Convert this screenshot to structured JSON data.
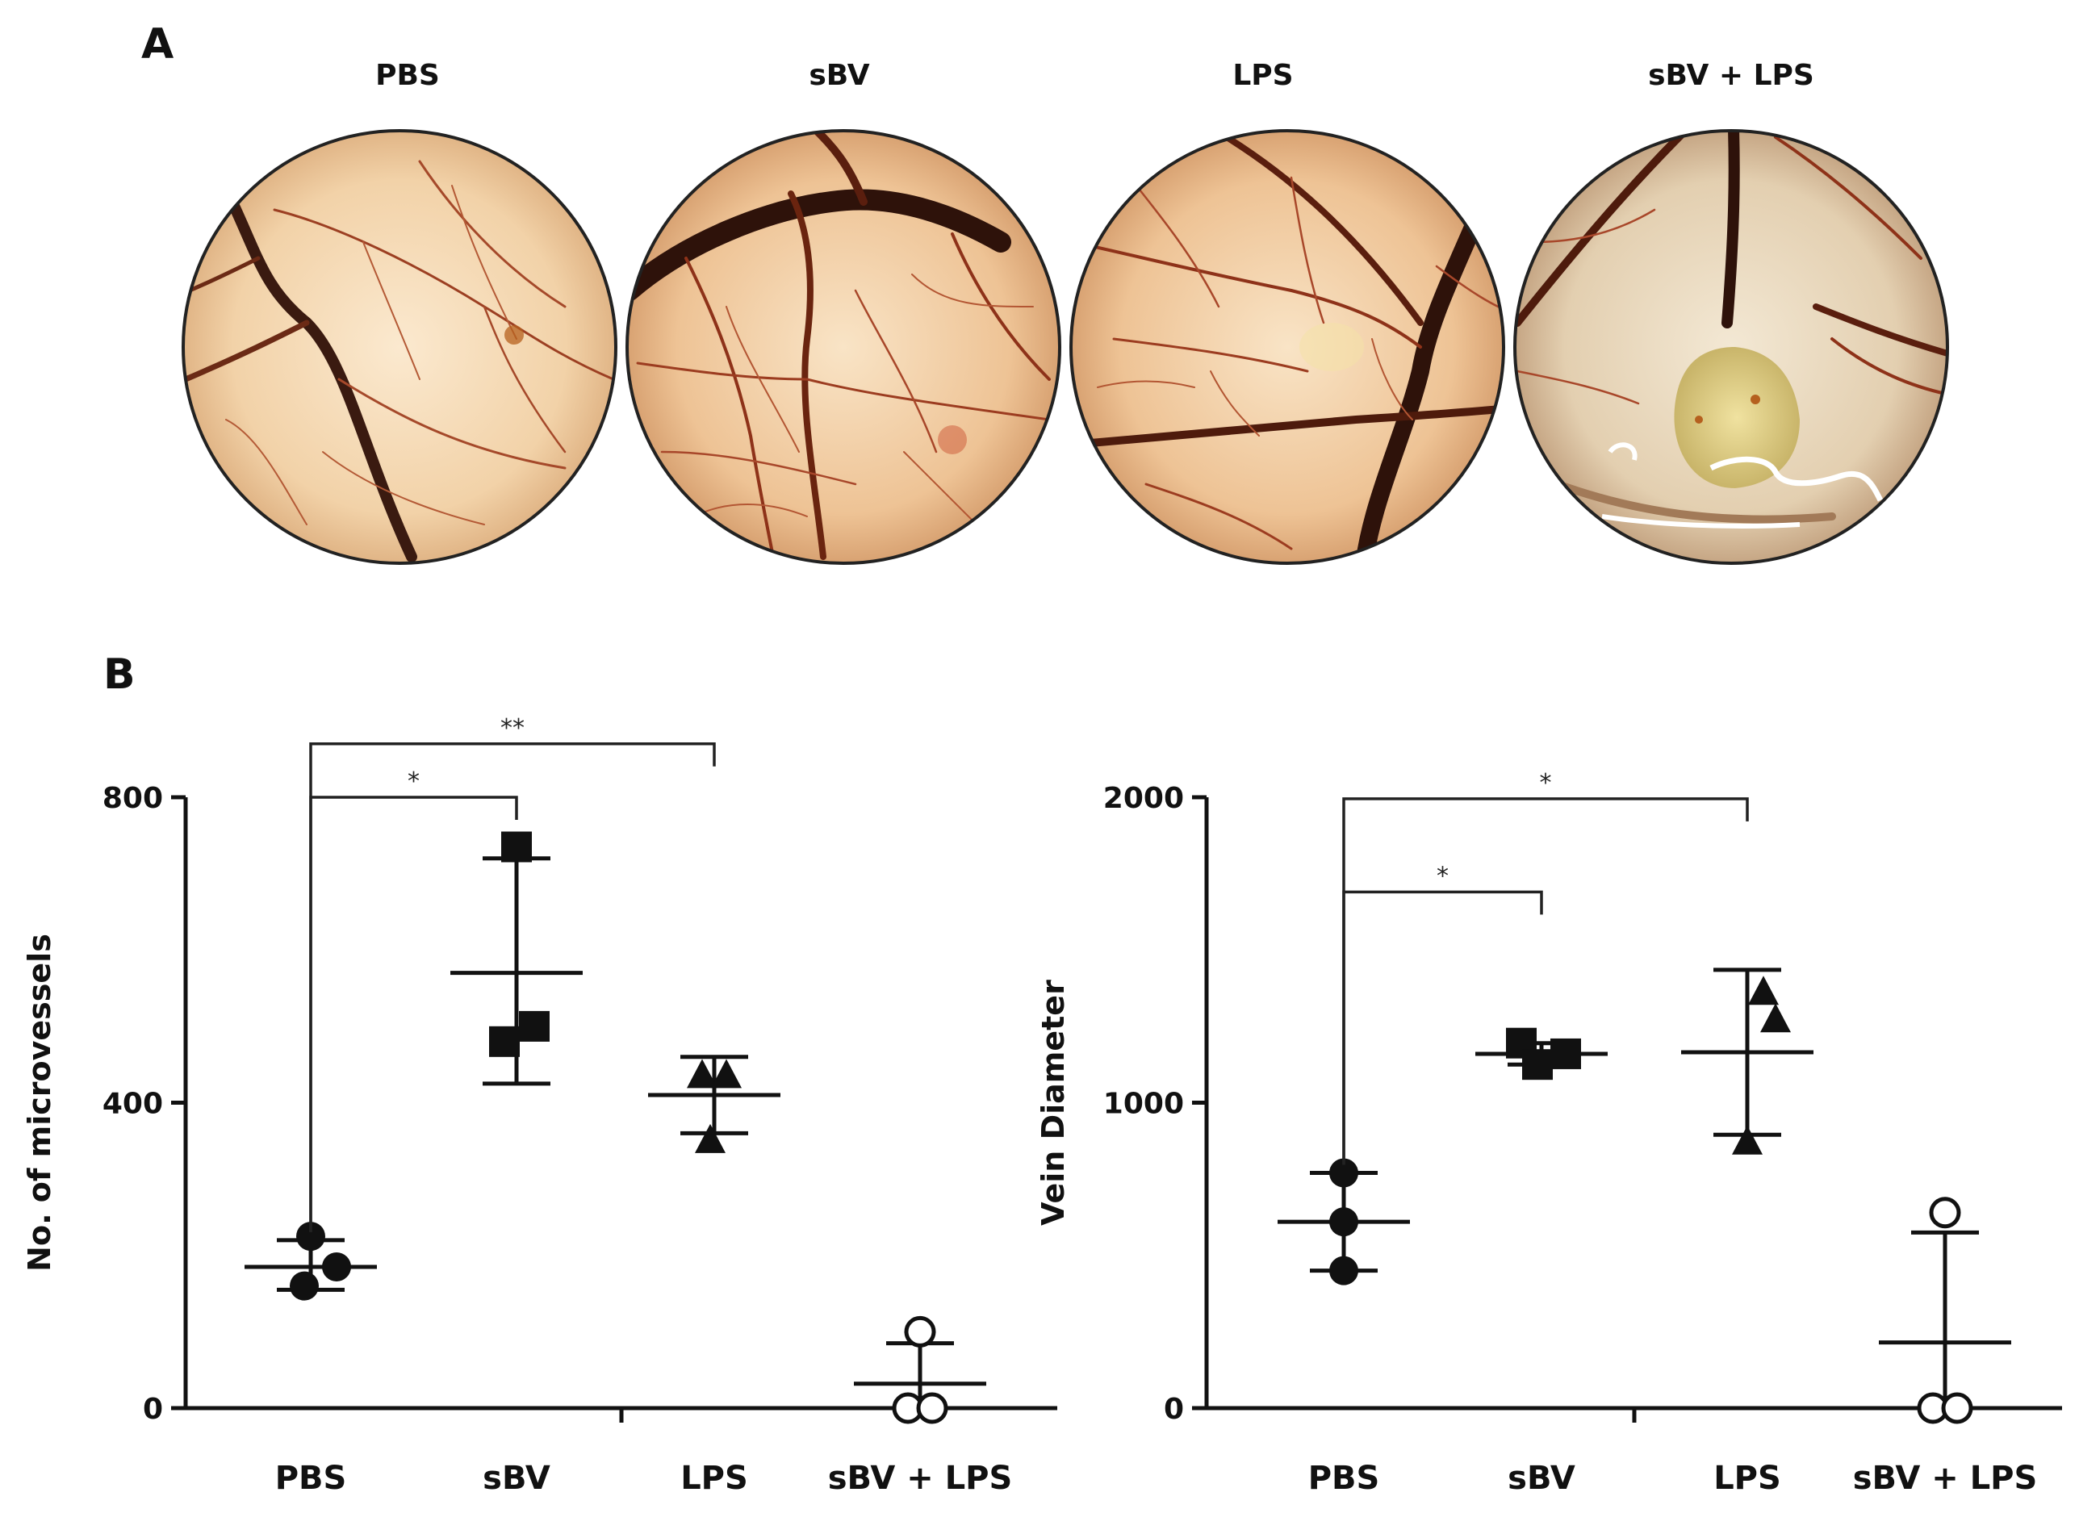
{
  "panel_labels": {
    "a": "A",
    "b": "B"
  },
  "photos": [
    {
      "title": "PBS",
      "pattern": "normal"
    },
    {
      "title": "sBV",
      "pattern": "dense"
    },
    {
      "title": "LPS",
      "pattern": "dense"
    },
    {
      "title": "sBV + LPS",
      "pattern": "avascular"
    }
  ],
  "chart_data": [
    {
      "type": "scatter",
      "ylabel": "No. of microvessels",
      "xlabel": "",
      "categories": [
        "PBS",
        "sBV",
        "LPS",
        "sBV + LPS"
      ],
      "ylim": [
        0,
        800
      ],
      "yticks": [
        0,
        400,
        800
      ],
      "groups": [
        {
          "category": "PBS",
          "marker": "circle-filled",
          "points": [
            225,
            185,
            160
          ],
          "mean": 185,
          "err": [
            155,
            220
          ]
        },
        {
          "category": "sBV",
          "marker": "square-filled",
          "points": [
            735,
            500,
            480
          ],
          "mean": 570,
          "err": [
            425,
            720
          ]
        },
        {
          "category": "LPS",
          "marker": "triangle-filled",
          "points": [
            435,
            435,
            350
          ],
          "mean": 410,
          "err": [
            360,
            460
          ]
        },
        {
          "category": "sBV + LPS",
          "marker": "circle-open",
          "points": [
            100,
            0,
            0
          ],
          "mean": 32,
          "err": [
            0,
            85
          ]
        }
      ],
      "comparisons": [
        {
          "from": "PBS",
          "to": "sBV",
          "label": "*",
          "level": 800
        },
        {
          "from": "PBS",
          "to": "LPS",
          "label": "**",
          "level": 870
        }
      ]
    },
    {
      "type": "scatter",
      "ylabel": "Vein Diameter",
      "xlabel": "",
      "categories": [
        "PBS",
        "sBV",
        "LPS",
        "sBV + LPS"
      ],
      "ylim": [
        0,
        2000
      ],
      "yticks": [
        0,
        1000,
        2000
      ],
      "groups": [
        {
          "category": "PBS",
          "marker": "circle-filled",
          "points": [
            770,
            610,
            450
          ],
          "mean": 610,
          "err": [
            450,
            770
          ]
        },
        {
          "category": "sBV",
          "marker": "square-filled",
          "points": [
            1195,
            1125,
            1160
          ],
          "mean": 1160,
          "err": [
            1125,
            1195
          ]
        },
        {
          "category": "LPS",
          "marker": "triangle-filled",
          "points": [
            1360,
            1270,
            870
          ],
          "mean": 1165,
          "err": [
            895,
            1435
          ]
        },
        {
          "category": "sBV + LPS",
          "marker": "circle-open",
          "points": [
            640,
            0,
            0
          ],
          "mean": 215,
          "err": [
            0,
            575
          ]
        }
      ],
      "comparisons": [
        {
          "from": "PBS",
          "to": "sBV",
          "label": "*",
          "level": 1690
        },
        {
          "from": "PBS",
          "to": "LPS",
          "label": "*",
          "level": 1995
        }
      ]
    }
  ]
}
